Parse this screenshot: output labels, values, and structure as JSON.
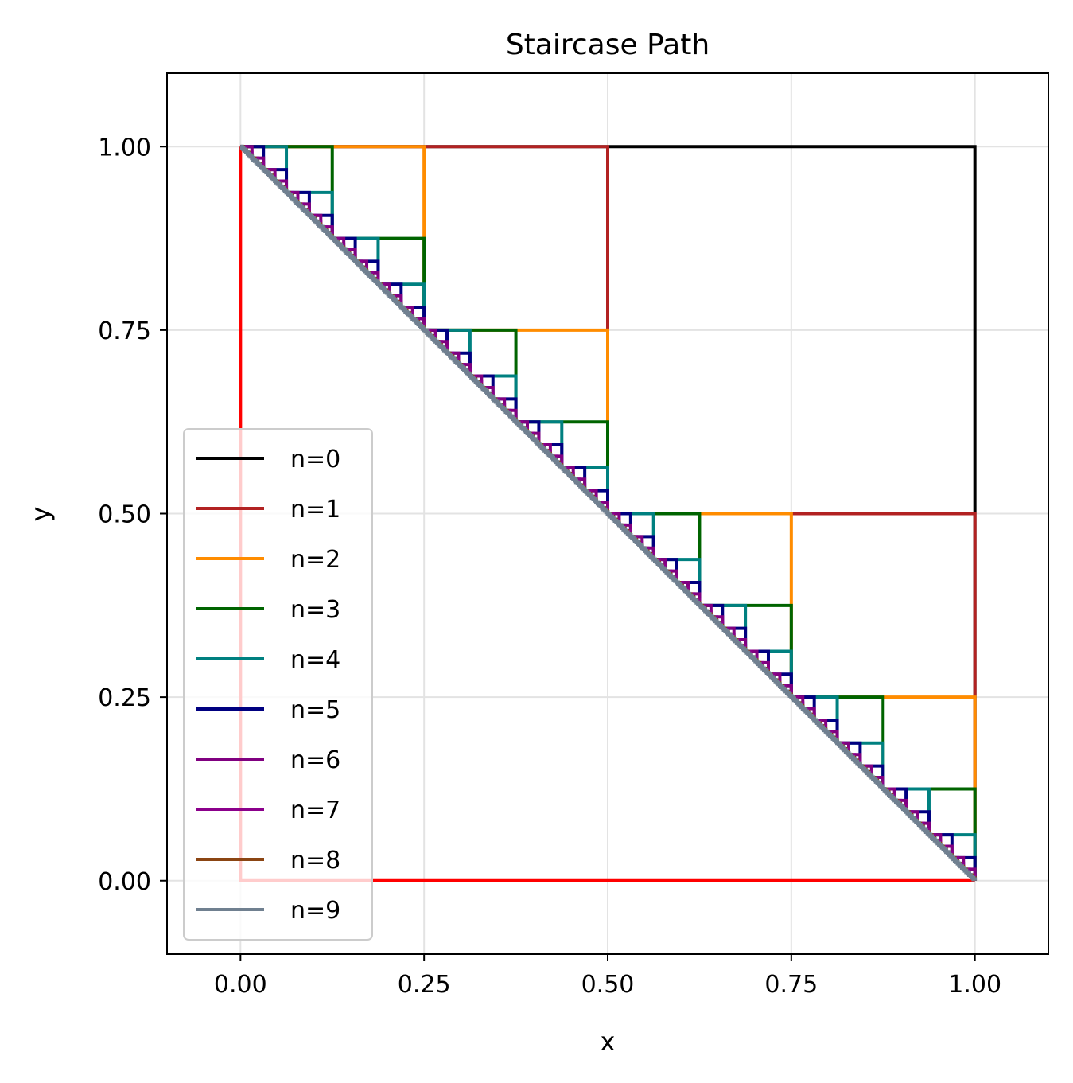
{
  "chart_data": {
    "type": "line",
    "title": "Staircase Path",
    "xlabel": "x",
    "ylabel": "y",
    "xlim": [
      -0.1,
      1.1
    ],
    "ylim": [
      -0.1,
      1.1
    ],
    "xticks": [
      "0.00",
      "0.25",
      "0.50",
      "0.75",
      "1.00"
    ],
    "yticks": [
      "0.00",
      "0.25",
      "0.50",
      "0.75",
      "1.00"
    ],
    "grid": true,
    "legend_position": "lower-left",
    "boundary_color": "#ff0000",
    "series": [
      {
        "name": "n=0",
        "color": "#000000",
        "steps": 1
      },
      {
        "name": "n=1",
        "color": "#b22222",
        "steps": 2
      },
      {
        "name": "n=2",
        "color": "#ff8c00",
        "steps": 4
      },
      {
        "name": "n=3",
        "color": "#006400",
        "steps": 8
      },
      {
        "name": "n=4",
        "color": "#008080",
        "steps": 16
      },
      {
        "name": "n=5",
        "color": "#000080",
        "steps": 32
      },
      {
        "name": "n=6",
        "color": "#800080",
        "steps": 64
      },
      {
        "name": "n=7",
        "color": "#8b008b",
        "steps": 128
      },
      {
        "name": "n=8",
        "color": "#8b4513",
        "steps": 256
      },
      {
        "name": "n=9",
        "color": "#708090",
        "steps": 512
      }
    ]
  }
}
